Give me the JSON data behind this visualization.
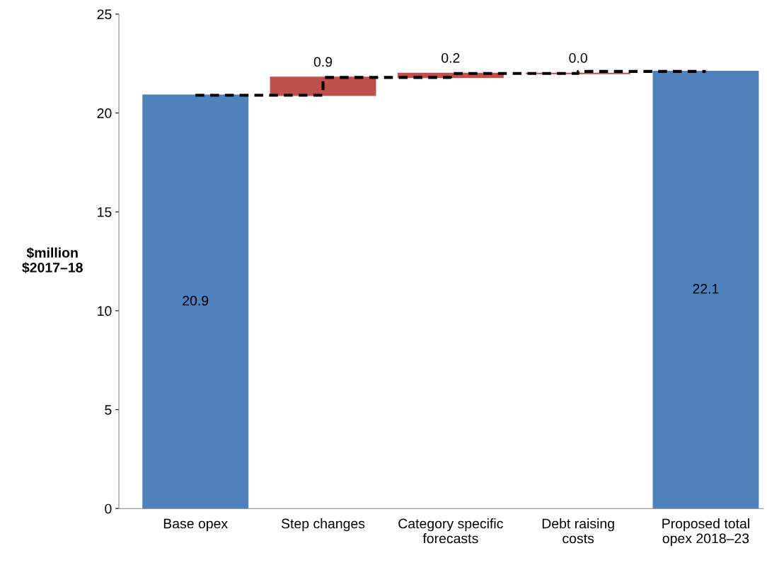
{
  "chart_data": {
    "type": "bar",
    "ylabel": "$million\n$2017–18",
    "categories": [
      "Base opex",
      "Step changes",
      "Category specific\nforecasts",
      "Debt raising\ncosts",
      "Proposed total\nopex 2018–23"
    ],
    "series": [
      {
        "values": [
          20.9,
          0.9,
          0.2,
          0.0,
          22.1
        ],
        "value_labels": [
          "20.9",
          "0.9",
          "0.2",
          "0.0",
          "22.1"
        ],
        "base": [
          0,
          20.9,
          21.8,
          22.0,
          0
        ],
        "colors": [
          "#4f81bd",
          "#c0504d",
          "#c0504d",
          "#c0504d",
          "#4f81bd"
        ]
      },
      {
        "type": "step",
        "color": "#000000",
        "line_style": "dashed",
        "values": [
          20.9,
          21.8,
          22.0,
          22.1,
          22.1
        ]
      }
    ],
    "ylim": [
      0,
      25
    ],
    "yticks": [
      0,
      5,
      10,
      15,
      20,
      25
    ],
    "grid": false,
    "legend": false
  }
}
